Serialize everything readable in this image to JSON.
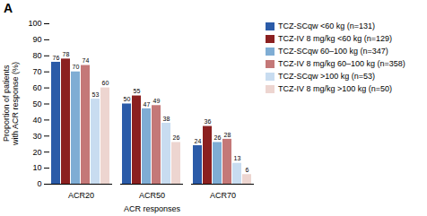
{
  "chart_data": {
    "type": "bar",
    "title": "A",
    "categories": [
      "ACR20",
      "ACR50",
      "ACR70"
    ],
    "series": [
      {
        "name": "TCZ-SCqw <60 kg (n=131)",
        "color": "#2B5BA8",
        "values": [
          76,
          50,
          24
        ]
      },
      {
        "name": "TCZ-IV 8 mg/kg <60 kg (n=129)",
        "color": "#8B2020",
        "values": [
          78,
          55,
          36
        ]
      },
      {
        "name": "TCZ-SCqw 60–100 kg (n=347)",
        "color": "#7FADD4",
        "values": [
          70,
          47,
          26
        ]
      },
      {
        "name": "TCZ-IV 8 mg/kg 60–100 kg (n=358)",
        "color": "#C47878",
        "values": [
          74,
          49,
          28
        ]
      },
      {
        "name": "TCZ-SCqw >100 kg (n=53)",
        "color": "#C8DCF0",
        "values": [
          53,
          38,
          13
        ]
      },
      {
        "name": "TCZ-IV 8 mg/kg >100 kg (n=50)",
        "color": "#EDD5D0",
        "values": [
          60,
          26,
          6
        ]
      }
    ],
    "xlabel": "ACR responses",
    "ylabel": "Proportion of patients\nwith ACR response (%)",
    "ylim": [
      0,
      100
    ],
    "yticks": [
      0,
      10,
      20,
      30,
      40,
      50,
      60,
      70,
      80,
      90,
      100
    ],
    "grid": false,
    "legend": "right",
    "data_labels": true
  }
}
